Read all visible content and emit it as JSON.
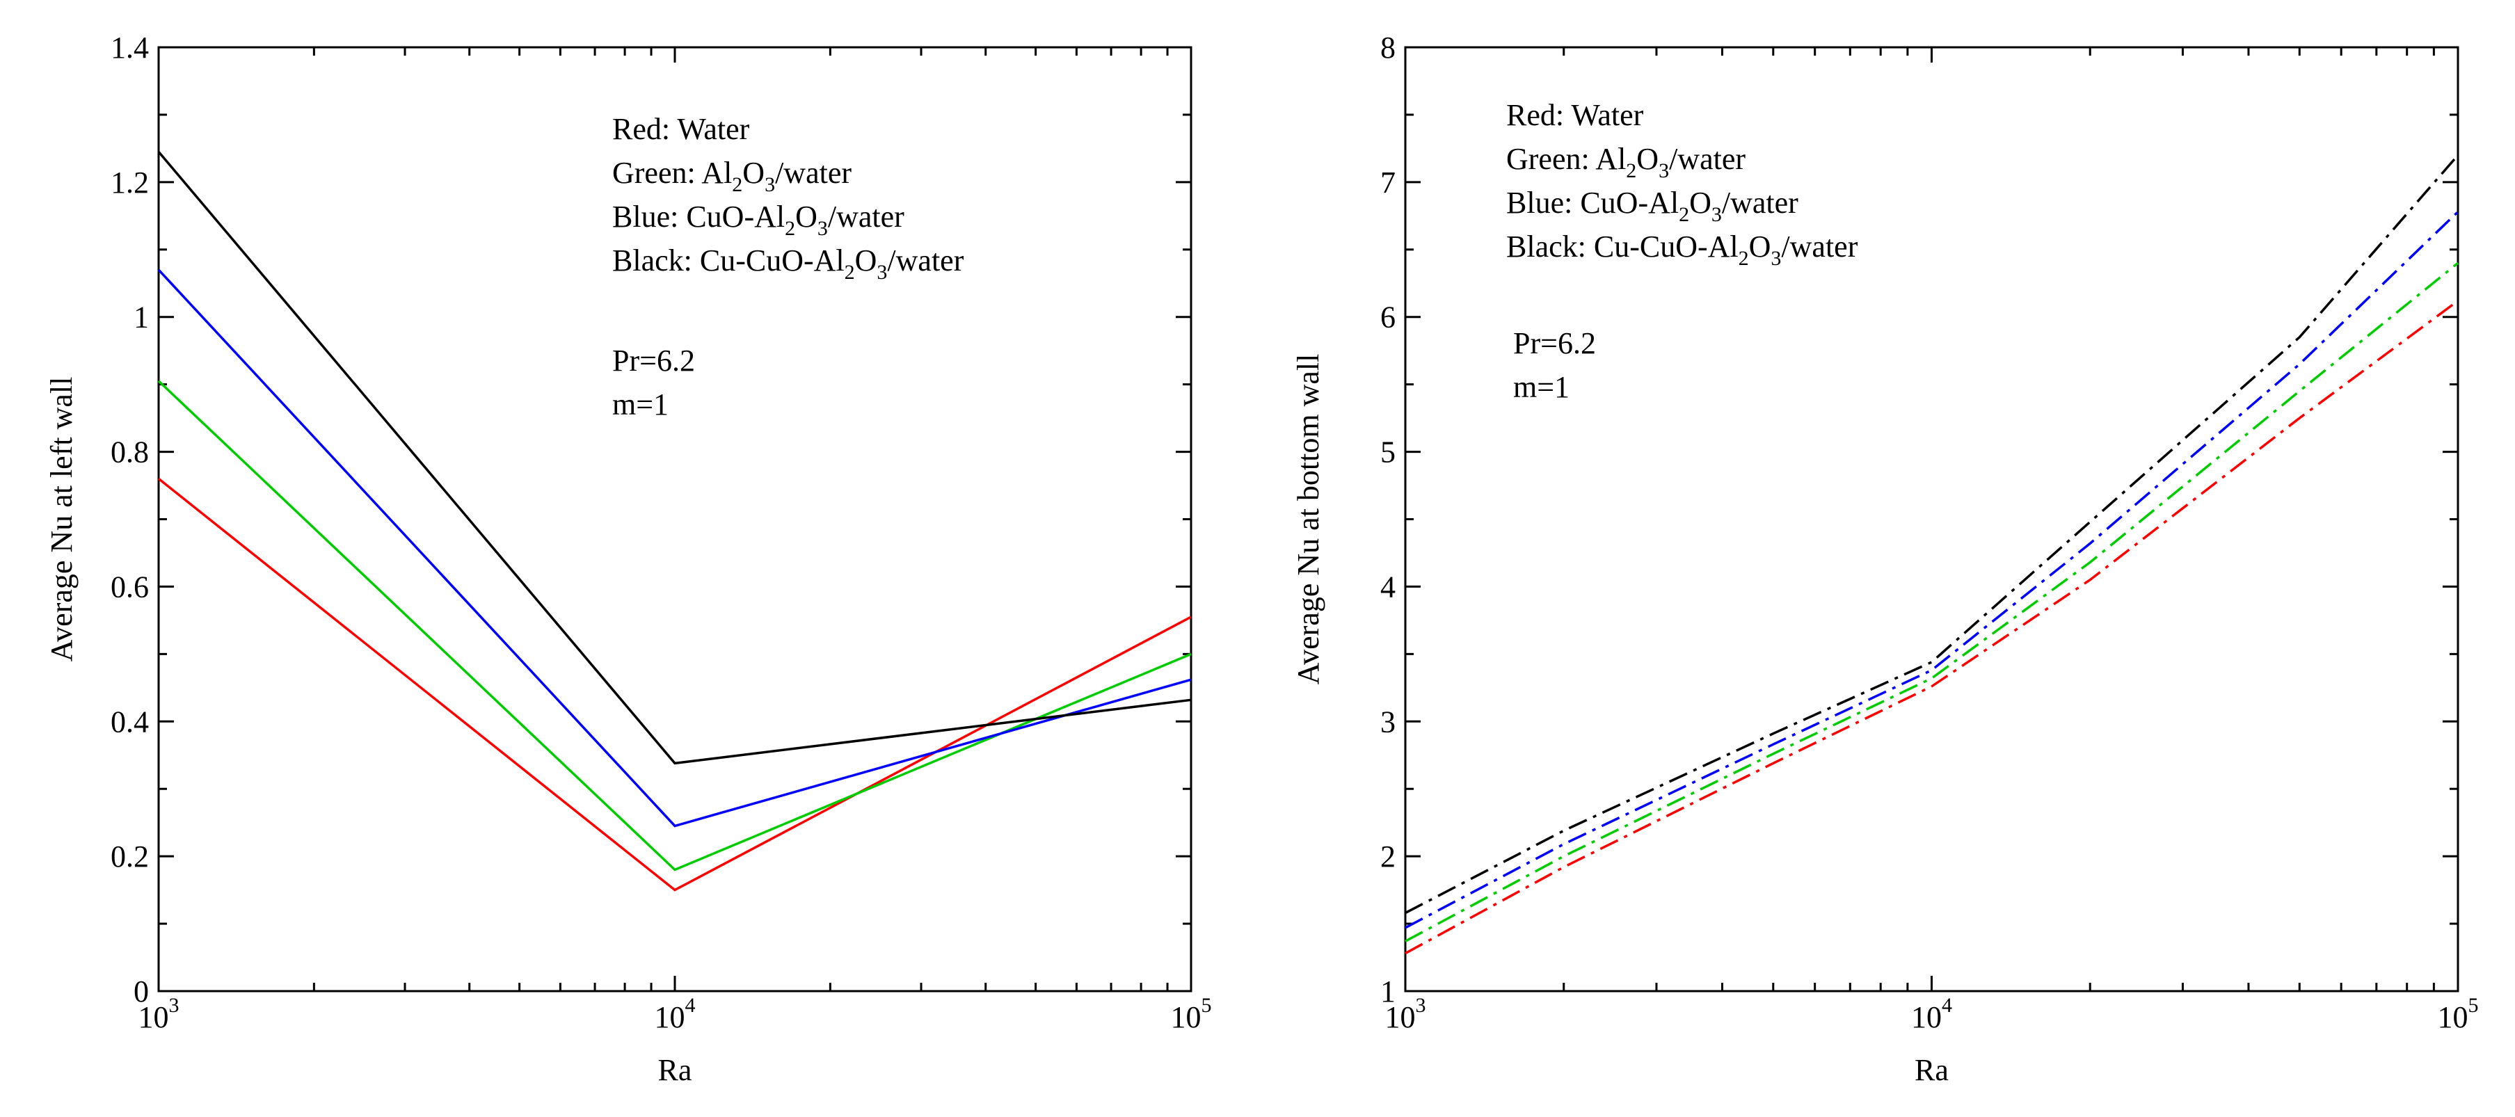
{
  "chart_data": [
    {
      "type": "line",
      "xscale": "log",
      "x": [
        1000,
        10000,
        100000
      ],
      "xticks": [
        {
          "value": 1000,
          "base": "10",
          "exp": "3"
        },
        {
          "value": 10000,
          "base": "10",
          "exp": "4"
        },
        {
          "value": 100000,
          "base": "10",
          "exp": "5"
        }
      ],
      "xlim": [
        1000,
        100000
      ],
      "ylim": [
        0,
        1.4
      ],
      "yticks": [
        0,
        0.2,
        0.4,
        0.6,
        0.8,
        1,
        1.2,
        1.4
      ],
      "ytick_labels": [
        "0",
        "0.2",
        "0.4",
        "0.6",
        "0.8",
        "1",
        "1.2",
        "1.4"
      ],
      "xlabel": "Ra",
      "ylabel": "Average Nu at left wall",
      "line_style": "solid",
      "series": [
        {
          "name": "Water",
          "color": "#ff0000",
          "values": [
            0.76,
            0.15,
            0.555
          ]
        },
        {
          "name": "Al2O3/water",
          "color": "#00cc00",
          "values": [
            0.905,
            0.18,
            0.5
          ]
        },
        {
          "name": "CuO-Al2O3/water",
          "color": "#0000ff",
          "values": [
            1.07,
            0.245,
            0.462
          ]
        },
        {
          "name": "Cu-CuO-Al2O3/water",
          "color": "#000000",
          "values": [
            1.245,
            0.338,
            0.432
          ]
        }
      ],
      "legend": [
        {
          "label": "Red:",
          "parts": [
            {
              "t": "Water"
            }
          ]
        },
        {
          "label": "Green:",
          "parts": [
            {
              "t": "Al"
            },
            {
              "t": "2",
              "sub": true
            },
            {
              "t": "O"
            },
            {
              "t": "3",
              "sub": true
            },
            {
              "t": "/water"
            }
          ]
        },
        {
          "label": "Blue:",
          "parts": [
            {
              "t": "CuO-Al"
            },
            {
              "t": "2",
              "sub": true
            },
            {
              "t": "O"
            },
            {
              "t": "3",
              "sub": true
            },
            {
              "t": "/water"
            }
          ]
        },
        {
          "label": "Black:",
          "parts": [
            {
              "t": "Cu-CuO-Al"
            },
            {
              "t": "2",
              "sub": true
            },
            {
              "t": "O"
            },
            {
              "t": "3",
              "sub": true
            },
            {
              "t": "/water"
            }
          ]
        }
      ],
      "annotations": [
        "Pr=6.2",
        "m=1"
      ]
    },
    {
      "type": "line",
      "xscale": "log",
      "x": [
        1000,
        2000,
        5000,
        10000,
        20000,
        50000,
        100000
      ],
      "xticks": [
        {
          "value": 1000,
          "base": "10",
          "exp": "3"
        },
        {
          "value": 10000,
          "base": "10",
          "exp": "4"
        },
        {
          "value": 100000,
          "base": "10",
          "exp": "5"
        }
      ],
      "xlim": [
        1000,
        100000
      ],
      "ylim": [
        1,
        8
      ],
      "yticks": [
        1,
        2,
        3,
        4,
        5,
        6,
        7,
        8
      ],
      "ytick_labels": [
        "1",
        "2",
        "3",
        "4",
        "5",
        "6",
        "7",
        "8"
      ],
      "xlabel": "Ra",
      "ylabel": "Average Nu at bottom wall",
      "line_style": "dashdot",
      "series": [
        {
          "name": "Water",
          "color": "#ff0000",
          "values": [
            1.28,
            1.92,
            2.69,
            3.26,
            4.05,
            5.25,
            6.12
          ]
        },
        {
          "name": "Al2O3/water",
          "color": "#00cc00",
          "values": [
            1.37,
            2.0,
            2.76,
            3.32,
            4.18,
            5.45,
            6.4
          ]
        },
        {
          "name": "CuO-Al2O3/water",
          "color": "#0000ff",
          "values": [
            1.47,
            2.09,
            2.83,
            3.38,
            4.32,
            5.65,
            6.78
          ]
        },
        {
          "name": "Cu-CuO-Al2O3/water",
          "color": "#000000",
          "values": [
            1.58,
            2.19,
            2.91,
            3.44,
            4.48,
            5.85,
            7.2
          ]
        }
      ],
      "legend": [
        {
          "label": "Red:",
          "parts": [
            {
              "t": "Water"
            }
          ]
        },
        {
          "label": "Green:",
          "parts": [
            {
              "t": "Al"
            },
            {
              "t": "2",
              "sub": true
            },
            {
              "t": "O"
            },
            {
              "t": "3",
              "sub": true
            },
            {
              "t": "/water"
            }
          ]
        },
        {
          "label": "Blue:",
          "parts": [
            {
              "t": "CuO-Al"
            },
            {
              "t": "2",
              "sub": true
            },
            {
              "t": "O"
            },
            {
              "t": "3",
              "sub": true
            },
            {
              "t": "/water"
            }
          ]
        },
        {
          "label": "Black:",
          "parts": [
            {
              "t": "Cu-CuO-Al"
            },
            {
              "t": "2",
              "sub": true
            },
            {
              "t": "O"
            },
            {
              "t": "3",
              "sub": true
            },
            {
              "t": "/water"
            }
          ]
        }
      ],
      "annotations": [
        "Pr=6.2",
        "m=1"
      ]
    }
  ]
}
